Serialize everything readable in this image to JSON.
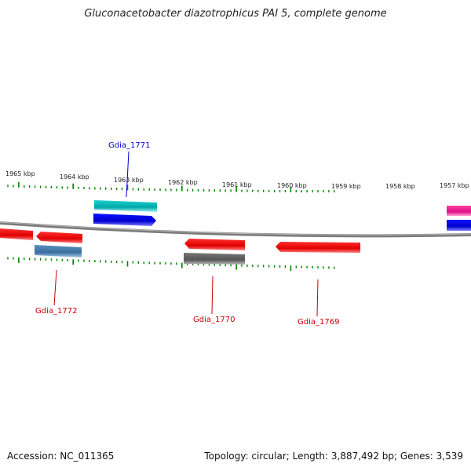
{
  "title": "Gluconacetobacter diazotrophicus PAI 5, complete genome",
  "footer": {
    "accession": "Accession: NC_011365",
    "topology": "Topology: circular; Length: 3,887,492 bp; Genes: 3,539"
  },
  "scale": {
    "unit": "kbp",
    "labels": [
      "1965 kbp",
      "1964 kbp",
      "1963 kbp",
      "1962 kbp",
      "1961 kbp",
      "1960 kbp",
      "1959 kbp",
      "1958 kbp",
      "1957 kbp"
    ]
  },
  "genes": [
    {
      "name": "Gdia_1771",
      "color": "#0000cc",
      "strand": "+"
    },
    {
      "name": "Gdia_1772",
      "color": "#cc0000",
      "strand": "-"
    },
    {
      "name": "Gdia_1770",
      "color": "#cc0000",
      "strand": "-"
    },
    {
      "name": "Gdia_1769",
      "color": "#cc0000",
      "strand": "-"
    }
  ],
  "colors": {
    "tick": "#008000",
    "backbone": "#808080",
    "red_feature": "#ff0000",
    "blue_feature": "#0000ff",
    "cyan_feature": "#00c0c0",
    "steel_feature": "#4682b4",
    "grey_feature": "#606060",
    "magenta_feature": "#ff1493"
  }
}
